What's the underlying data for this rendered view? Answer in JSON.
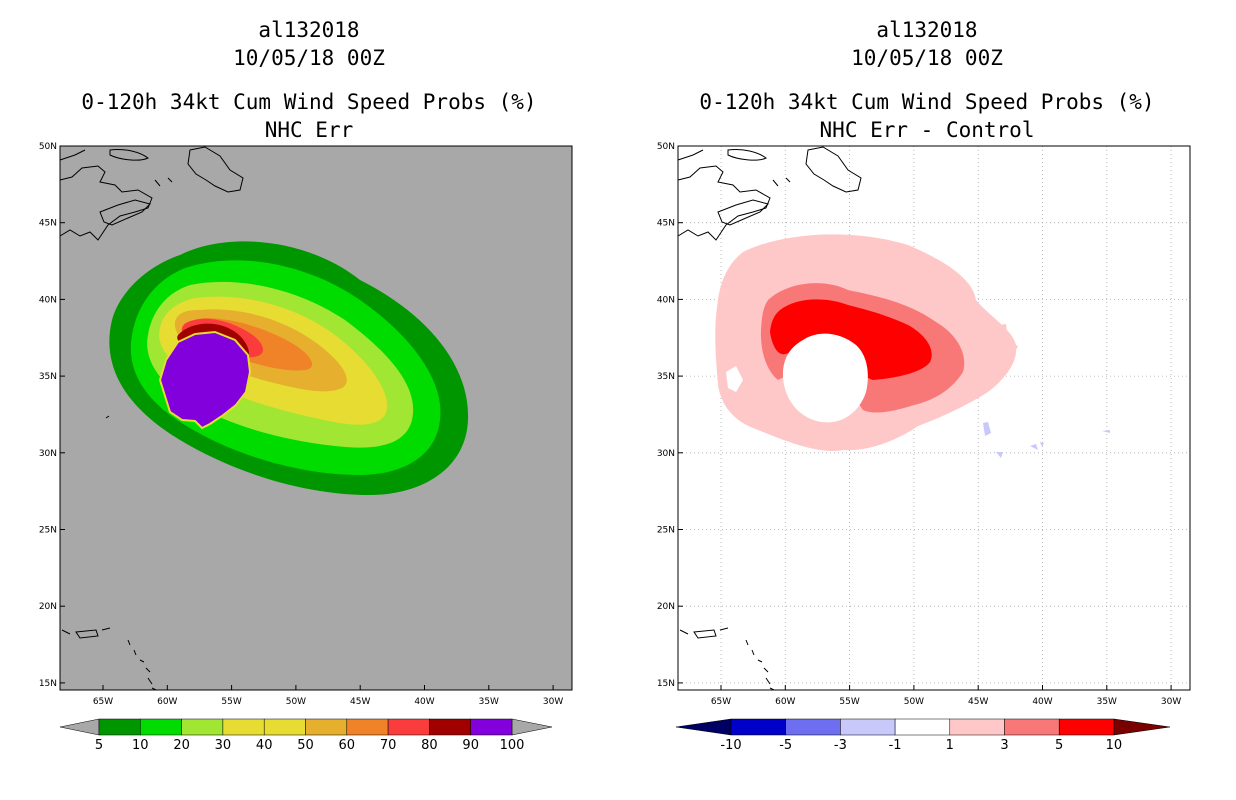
{
  "panels": [
    {
      "storm_id": "al132018",
      "datetime": "10/05/18 00Z",
      "product": "0-120h 34kt Cum Wind Speed Probs (%)",
      "subtitle": "NHC Err",
      "lat_labels": [
        "50N",
        "45N",
        "40N",
        "35N",
        "30N",
        "25N",
        "20N",
        "15N"
      ],
      "lon_labels": [
        "65W",
        "60W",
        "55W",
        "50W",
        "45W",
        "40W",
        "35W",
        "30W"
      ],
      "colorbar_labels": [
        "5",
        "10",
        "20",
        "30",
        "40",
        "50",
        "60",
        "70",
        "80",
        "90",
        "100"
      ],
      "colorbar_colors": [
        "#009600",
        "#00dc00",
        "#a0e632",
        "#e6dc32",
        "#e6dc32",
        "#e6af2d",
        "#f08228",
        "#fa3c3c",
        "#a00000",
        "#8200dc"
      ],
      "background": "#a8a8a8"
    },
    {
      "storm_id": "al132018",
      "datetime": "10/05/18 00Z",
      "product": "0-120h 34kt Cum Wind Speed Probs (%)",
      "subtitle": "NHC Err - Control",
      "lat_labels": [
        "50N",
        "45N",
        "40N",
        "35N",
        "30N",
        "25N",
        "20N",
        "15N"
      ],
      "lon_labels": [
        "65W",
        "60W",
        "55W",
        "50W",
        "45W",
        "40W",
        "35W",
        "30W"
      ],
      "colorbar_labels": [
        "-10",
        "-5",
        "-3",
        "-1",
        "1",
        "3",
        "5",
        "10"
      ],
      "colorbar_colors": [
        "#0000c8",
        "#6e6ef0",
        "#c8c8fa",
        "#ffffff",
        "#ffc8c8",
        "#f87878",
        "#ff0000"
      ],
      "background": "#ffffff"
    }
  ]
}
